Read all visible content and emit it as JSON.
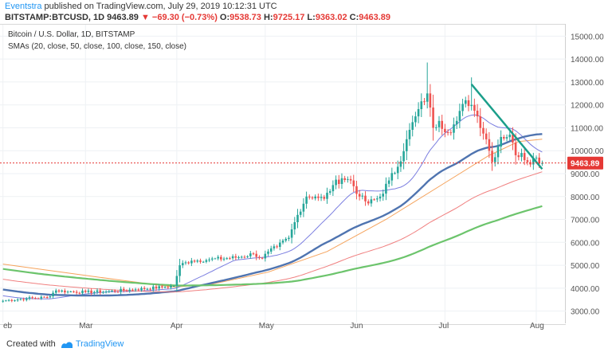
{
  "header": {
    "author": "Eventstra",
    "published_text": " published on TradingView.com, July 29, 2019 10:12:31 UTC",
    "symbol": "BITSTAMP:BTCUSD, 1D",
    "last": "9463.89",
    "change": "▼ −69.30 (−0.73%)",
    "o_label": "O:",
    "o": "9538.73",
    "h_label": "H:",
    "h": "9725.17",
    "l_label": "L:",
    "l": "9363.02",
    "c_label": "C:",
    "c": "9463.89"
  },
  "legend": {
    "title": "Bitcoin / U.S. Dollar, 1D, BITSTAMP",
    "smas": "SMAs (20, close, 50, close, 100, close, 150, close)"
  },
  "footer": {
    "created_with": "Created with",
    "brand": "TradingView"
  },
  "colors": {
    "up": "#26a69a",
    "down": "#ef5350",
    "sma20": "#7b7ee0",
    "sma50": "#4f74b0",
    "sma100": "#f08080",
    "sma150": "#6cc46c",
    "orange": "#f5a35c",
    "trendline": "#1b9e8a",
    "lastline": "#e53935"
  },
  "chart_data": {
    "type": "candlestick",
    "title": "Bitcoin / U.S. Dollar, 1D, BITSTAMP",
    "ylim": [
      2500,
      15500
    ],
    "y_ticks": [
      3000,
      4000,
      5000,
      6000,
      7000,
      8000,
      9000,
      10000,
      11000,
      12000,
      13000,
      14000,
      15000
    ],
    "y_tick_labels": [
      "3000.00",
      "4000.00",
      "5000.00",
      "6000.00",
      "7000.00",
      "8000.00",
      "9000.00",
      "10000.00",
      "11000.00",
      "12000.00",
      "13000.00",
      "14000.00",
      "15000.00"
    ],
    "x_ticks": [
      {
        "day": 0,
        "label": "eb"
      },
      {
        "day": 28,
        "label": "Mar"
      },
      {
        "day": 59,
        "label": "Apr"
      },
      {
        "day": 89,
        "label": "May"
      },
      {
        "day": 120,
        "label": "Jun"
      },
      {
        "day": 150,
        "label": "Jul"
      },
      {
        "day": 181,
        "label": "Aug"
      }
    ],
    "x_range": [
      -1,
      191
    ],
    "last_price": 9463.89,
    "last_price_label": "9463.89",
    "close_waypoints": [
      [
        0,
        3450
      ],
      [
        8,
        3550
      ],
      [
        15,
        3600
      ],
      [
        18,
        3900
      ],
      [
        22,
        3850
      ],
      [
        28,
        3830
      ],
      [
        35,
        3850
      ],
      [
        45,
        3950
      ],
      [
        55,
        4050
      ],
      [
        58,
        4100
      ],
      [
        60,
        5000
      ],
      [
        64,
        5200
      ],
      [
        70,
        5250
      ],
      [
        80,
        5350
      ],
      [
        85,
        5500
      ],
      [
        88,
        5300
      ],
      [
        90,
        5600
      ],
      [
        93,
        5800
      ],
      [
        97,
        6200
      ],
      [
        100,
        7200
      ],
      [
        103,
        8000
      ],
      [
        106,
        8000
      ],
      [
        109,
        7900
      ],
      [
        112,
        8500
      ],
      [
        115,
        8800
      ],
      [
        118,
        8700
      ],
      [
        121,
        8000
      ],
      [
        124,
        7700
      ],
      [
        128,
        8000
      ],
      [
        131,
        8700
      ],
      [
        134,
        9300
      ],
      [
        137,
        10500
      ],
      [
        140,
        11500
      ],
      [
        144,
        12500
      ],
      [
        146,
        11000
      ],
      [
        148,
        11300
      ],
      [
        151,
        10800
      ],
      [
        154,
        11300
      ],
      [
        157,
        12200
      ],
      [
        159,
        12000
      ],
      [
        161,
        11500
      ],
      [
        164,
        10500
      ],
      [
        166,
        9500
      ],
      [
        169,
        10600
      ],
      [
        172,
        10700
      ],
      [
        174,
        9800
      ],
      [
        176,
        9900
      ],
      [
        178,
        9500
      ],
      [
        181,
        9700
      ],
      [
        183,
        9463.89
      ]
    ],
    "trendline": [
      [
        159,
        12900
      ],
      [
        183,
        9200
      ]
    ],
    "annotation": "9463.89",
    "series": [
      {
        "name": "SMA 20",
        "color": "#7b7ee0",
        "period": 20
      },
      {
        "name": "SMA 50",
        "color": "#4f74b0",
        "period": 50
      },
      {
        "name": "SMA 100",
        "color": "#f08080",
        "period": 100
      },
      {
        "name": "SMA 150",
        "color": "#6cc46c",
        "period": 150
      }
    ]
  }
}
